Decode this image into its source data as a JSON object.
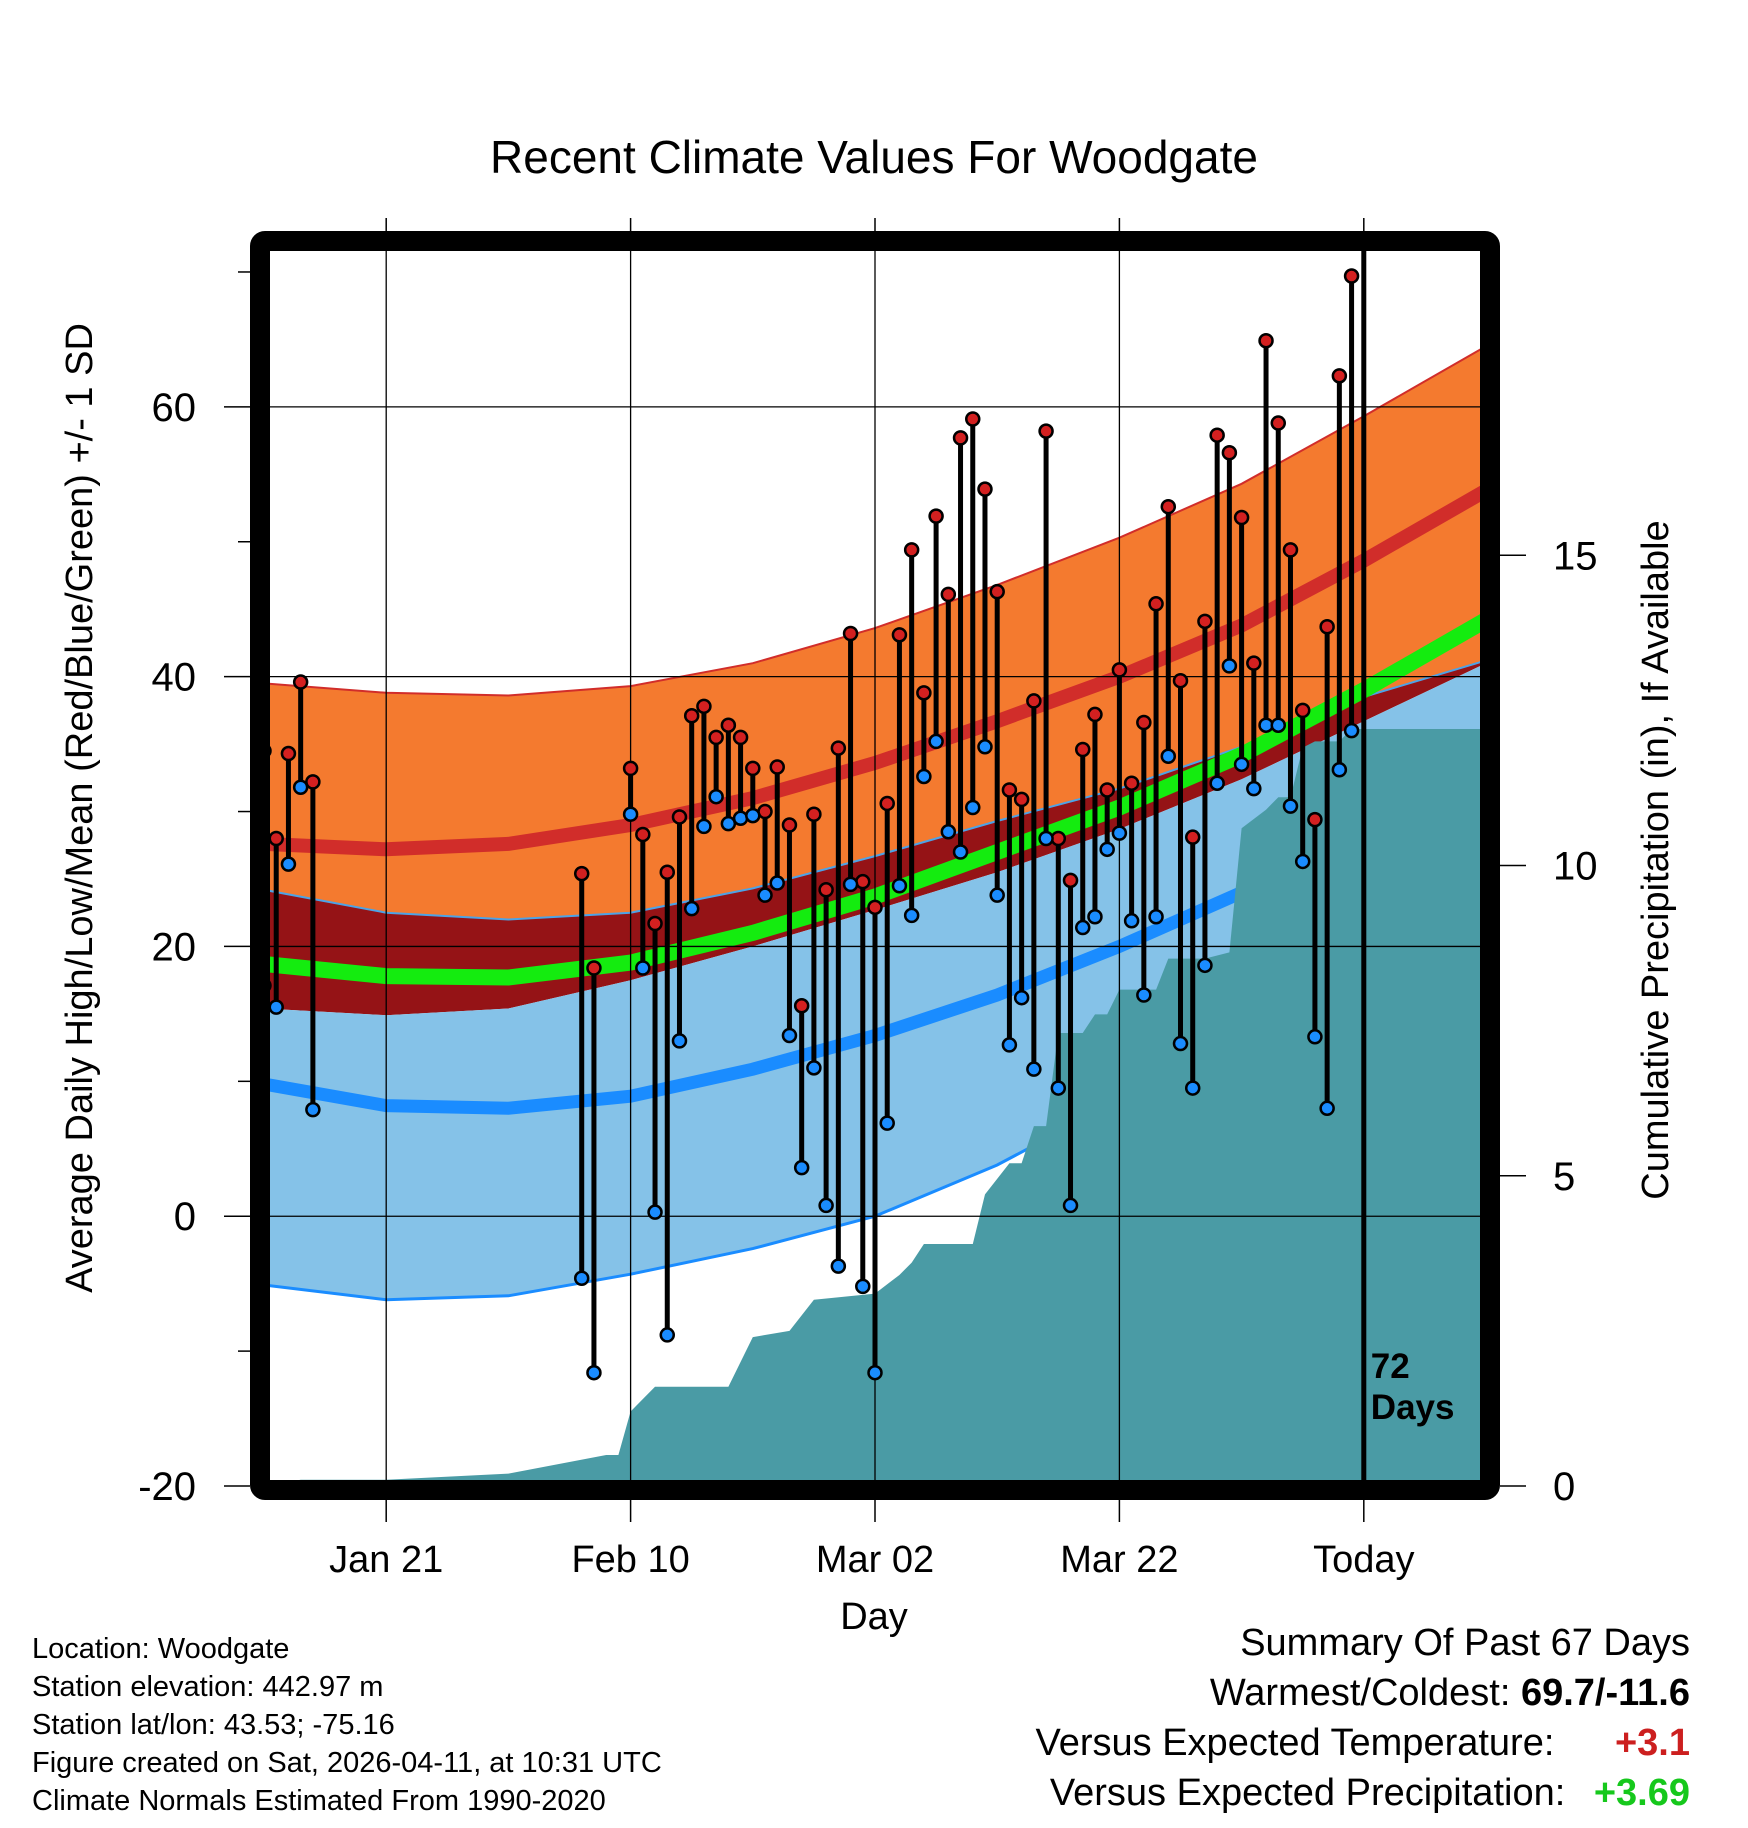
{
  "chart_data": {
    "type": "line",
    "title": "Recent Climate Values For Woodgate",
    "xlabel": "Day",
    "ylabel": "Average Daily High/Low/Mean (Red/Blue/Green) +/- 1 SD",
    "y2label": "Cumulative Precipitation (in), If Available",
    "x_range_days": [
      0,
      100
    ],
    "ylim": [
      -20,
      72
    ],
    "y2lim": [
      0,
      20
    ],
    "yticks": [
      -20,
      0,
      20,
      40,
      60
    ],
    "y2ticks": [
      0,
      5,
      10,
      15
    ],
    "xticks": [
      {
        "day": 10,
        "label": "Jan 21"
      },
      {
        "day": 30,
        "label": "Feb 10"
      },
      {
        "day": 50,
        "label": "Mar 02"
      },
      {
        "day": 70,
        "label": "Mar 22"
      },
      {
        "day": 90,
        "label": "Today"
      }
    ],
    "today_day": 90,
    "today_label": [
      "72",
      "Days"
    ],
    "normals": {
      "days": [
        0,
        10,
        20,
        30,
        40,
        50,
        60,
        70,
        80,
        90,
        100
      ],
      "high_mean": [
        27.6,
        27.2,
        27.6,
        29.0,
        31.0,
        33.6,
        36.7,
        40.0,
        43.8,
        48.6,
        53.8
      ],
      "high_sd_upper": [
        39.5,
        38.8,
        38.6,
        39.3,
        41.0,
        43.6,
        46.8,
        50.3,
        54.3,
        59.3,
        64.5
      ],
      "high_sd_lower": [
        24.2,
        22.5,
        22.0,
        22.5,
        24.3,
        26.7,
        29.3,
        31.7,
        34.8,
        38.5,
        41.2
      ],
      "mean_mean": [
        18.7,
        17.8,
        17.7,
        18.8,
        21.0,
        23.7,
        27.0,
        30.3,
        34.2,
        39.0,
        44.2
      ],
      "low_mean": [
        9.8,
        8.2,
        8.0,
        8.9,
        10.9,
        13.4,
        16.4,
        20.0,
        24.0,
        28.6,
        33.4
      ],
      "low_sd_upper": [
        15.4,
        14.9,
        15.4,
        17.5,
        20.0,
        22.7,
        25.5,
        28.7,
        32.4,
        36.7,
        41.0
      ],
      "low_sd_lower": [
        -5.1,
        -6.2,
        -5.9,
        -4.3,
        -2.4,
        0.0,
        3.8,
        8.6,
        14.3,
        20.5,
        26.2
      ]
    },
    "series": [
      {
        "name": "Daily High",
        "points": [
          [
            0,
            34.5
          ],
          [
            1,
            28.0
          ],
          [
            2,
            34.3
          ],
          [
            3,
            39.6
          ],
          [
            4,
            32.2
          ],
          [
            26,
            25.4
          ],
          [
            27,
            18.4
          ],
          [
            30,
            33.2
          ],
          [
            31,
            28.3
          ],
          [
            32,
            21.7
          ],
          [
            33,
            25.5
          ],
          [
            34,
            29.6
          ],
          [
            35,
            37.1
          ],
          [
            36,
            37.8
          ],
          [
            37,
            35.5
          ],
          [
            38,
            36.4
          ],
          [
            39,
            35.5
          ],
          [
            40,
            33.2
          ],
          [
            41,
            30.0
          ],
          [
            42,
            33.3
          ],
          [
            43,
            29.0
          ],
          [
            44,
            15.6
          ],
          [
            45,
            29.8
          ],
          [
            46,
            24.2
          ],
          [
            47,
            34.7
          ],
          [
            48,
            43.2
          ],
          [
            49,
            24.8
          ],
          [
            50,
            22.9
          ],
          [
            51,
            30.6
          ],
          [
            52,
            43.1
          ],
          [
            53,
            49.4
          ],
          [
            54,
            38.8
          ],
          [
            55,
            51.9
          ],
          [
            56,
            46.1
          ],
          [
            57,
            57.7
          ],
          [
            58,
            59.1
          ],
          [
            59,
            53.9
          ],
          [
            60,
            46.3
          ],
          [
            61,
            31.6
          ],
          [
            62,
            30.9
          ],
          [
            63,
            38.2
          ],
          [
            64,
            58.2
          ],
          [
            65,
            28.0
          ],
          [
            66,
            24.9
          ],
          [
            67,
            34.6
          ],
          [
            68,
            37.2
          ],
          [
            69,
            31.6
          ],
          [
            70,
            40.5
          ],
          [
            71,
            32.1
          ],
          [
            72,
            36.6
          ],
          [
            73,
            45.4
          ],
          [
            74,
            52.6
          ],
          [
            75,
            39.7
          ],
          [
            76,
            28.1
          ],
          [
            77,
            44.1
          ],
          [
            78,
            57.9
          ],
          [
            79,
            56.6
          ],
          [
            80,
            51.8
          ],
          [
            81,
            41.0
          ],
          [
            82,
            64.9
          ],
          [
            83,
            58.8
          ],
          [
            84,
            49.4
          ],
          [
            85,
            37.5
          ],
          [
            86,
            29.4
          ],
          [
            87,
            43.7
          ],
          [
            88,
            62.3
          ],
          [
            89,
            69.7
          ]
        ]
      },
      {
        "name": "Daily Low",
        "points": [
          [
            0,
            17.1
          ],
          [
            1,
            15.5
          ],
          [
            2,
            26.1
          ],
          [
            3,
            31.8
          ],
          [
            4,
            7.9
          ],
          [
            26,
            -4.6
          ],
          [
            27,
            -11.6
          ],
          [
            30,
            29.8
          ],
          [
            31,
            18.4
          ],
          [
            32,
            0.3
          ],
          [
            33,
            -8.8
          ],
          [
            34,
            13.0
          ],
          [
            35,
            22.8
          ],
          [
            36,
            28.9
          ],
          [
            37,
            31.1
          ],
          [
            38,
            29.1
          ],
          [
            39,
            29.5
          ],
          [
            40,
            29.7
          ],
          [
            41,
            23.8
          ],
          [
            42,
            24.7
          ],
          [
            43,
            13.4
          ],
          [
            44,
            3.6
          ],
          [
            45,
            11.0
          ],
          [
            46,
            0.8
          ],
          [
            47,
            -3.7
          ],
          [
            48,
            24.6
          ],
          [
            49,
            -5.2
          ],
          [
            50,
            -11.6
          ],
          [
            51,
            6.9
          ],
          [
            52,
            24.5
          ],
          [
            53,
            22.3
          ],
          [
            54,
            32.6
          ],
          [
            55,
            35.2
          ],
          [
            56,
            28.5
          ],
          [
            57,
            27.0
          ],
          [
            58,
            30.3
          ],
          [
            59,
            34.8
          ],
          [
            60,
            23.8
          ],
          [
            61,
            12.7
          ],
          [
            62,
            16.2
          ],
          [
            63,
            10.9
          ],
          [
            64,
            28.0
          ],
          [
            65,
            9.5
          ],
          [
            66,
            0.8
          ],
          [
            67,
            21.4
          ],
          [
            68,
            22.2
          ],
          [
            69,
            27.2
          ],
          [
            70,
            28.4
          ],
          [
            71,
            21.9
          ],
          [
            72,
            16.4
          ],
          [
            73,
            22.2
          ],
          [
            74,
            34.1
          ],
          [
            75,
            12.8
          ],
          [
            76,
            9.5
          ],
          [
            77,
            18.6
          ],
          [
            78,
            32.1
          ],
          [
            79,
            40.8
          ],
          [
            80,
            33.5
          ],
          [
            81,
            31.7
          ],
          [
            82,
            36.4
          ],
          [
            83,
            36.4
          ],
          [
            84,
            30.4
          ],
          [
            85,
            26.3
          ],
          [
            86,
            13.3
          ],
          [
            87,
            8.0
          ],
          [
            88,
            33.1
          ],
          [
            89,
            36.0
          ]
        ]
      },
      {
        "name": "Cumulative Precipitation",
        "points": [
          [
            0,
            0.0
          ],
          [
            3,
            0.1
          ],
          [
            10,
            0.1
          ],
          [
            20,
            0.2
          ],
          [
            28,
            0.5
          ],
          [
            29,
            0.5
          ],
          [
            30,
            1.2
          ],
          [
            32,
            1.6
          ],
          [
            33,
            1.6
          ],
          [
            38,
            1.6
          ],
          [
            40,
            2.4
          ],
          [
            43,
            2.5
          ],
          [
            45,
            3.0
          ],
          [
            50,
            3.1
          ],
          [
            52,
            3.4
          ],
          [
            53,
            3.6
          ],
          [
            54,
            3.9
          ],
          [
            58,
            3.9
          ],
          [
            59,
            4.7
          ],
          [
            61,
            5.2
          ],
          [
            62,
            5.2
          ],
          [
            63,
            5.8
          ],
          [
            64,
            5.8
          ],
          [
            65,
            7.3
          ],
          [
            67,
            7.3
          ],
          [
            68,
            7.6
          ],
          [
            69,
            7.6
          ],
          [
            70,
            8.0
          ],
          [
            73,
            8.0
          ],
          [
            74,
            8.5
          ],
          [
            76,
            8.5
          ],
          [
            77,
            8.5
          ],
          [
            79,
            8.6
          ],
          [
            80,
            10.6
          ],
          [
            82,
            10.9
          ],
          [
            83,
            11.1
          ],
          [
            84,
            11.1
          ],
          [
            85,
            11.9
          ],
          [
            86,
            12.0
          ],
          [
            88,
            12.0
          ],
          [
            89,
            12.2
          ],
          [
            100,
            12.2
          ]
        ]
      }
    ]
  },
  "info": {
    "location": "Location: Woodgate",
    "elevation": "Station elevation: 442.97 m",
    "latlon": "Station lat/lon: 43.53; -75.16",
    "created": "Figure created on Sat, 2026-04-11, at 10:31 UTC",
    "normals": "Climate Normals Estimated From 1990-2020"
  },
  "summary": {
    "title": "Summary Of Past 67 Days",
    "warmest_coldest_label": "Warmest/Coldest:",
    "warmest_coldest_value": "69.7/-11.6",
    "temp_label": "Versus Expected Temperature:",
    "temp_value": "+3.1",
    "precip_label": "Versus Expected Precipitation:",
    "precip_value": "+3.69"
  },
  "colors": {
    "high_band": "#f47a2f",
    "high_line": "#d12d2a",
    "mean_band_dark": "#951316",
    "mean_line": "#14ec0f",
    "low_band": "#85c2e8",
    "low_line": "#1a8cff",
    "precip": "#4a9ba5",
    "high_dot": "#d32020",
    "low_dot": "#1a8cff",
    "temp_anomaly": "#cc1f1f",
    "precip_anomaly": "#16c81c"
  }
}
